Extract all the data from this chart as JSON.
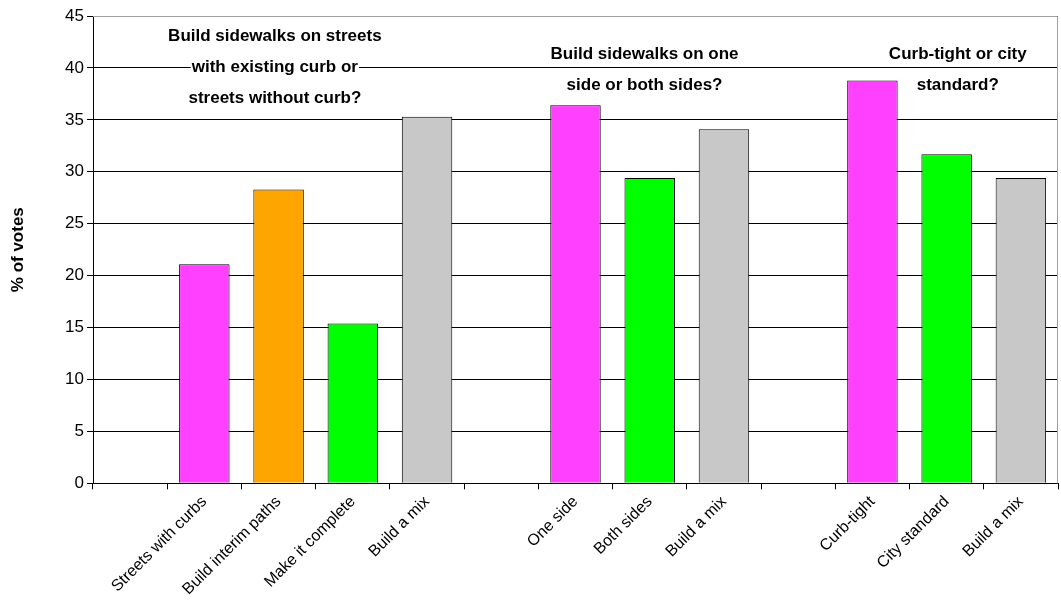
{
  "chart_data": {
    "type": "bar",
    "ylabel": "% of votes",
    "categories": [
      null,
      "Streets with curbs",
      "Build interim paths",
      "Make it complete",
      "Build a mix",
      null,
      "One side",
      "Both sides",
      "Build a mix",
      null,
      "Curb-tight",
      "City standard",
      "Build a mix"
    ],
    "values": [
      null,
      21.1,
      28.3,
      15.4,
      35.3,
      null,
      36.4,
      29.4,
      34.1,
      null,
      38.8,
      31.7,
      29.4
    ],
    "colors": [
      "#ff40ff",
      "#ff40ff",
      "#ffa500",
      "#00ff00",
      "#c8c8c8",
      "#ff40ff",
      "#ff40ff",
      "#00ff00",
      "#c8c8c8",
      "#ff40ff",
      "#ff40ff",
      "#00ff00",
      "#c8c8c8"
    ],
    "ylim": [
      0,
      45
    ],
    "yticks": [
      0,
      5,
      10,
      15,
      20,
      25,
      30,
      35,
      40,
      45
    ],
    "grid": "y",
    "legend": false,
    "annotations": [
      "Build sidewalks on streets\nwith existing curb or\nstreets without curb?",
      "Build sidewalks on one\nside or both sides?",
      "Curb-tight or city\nstandard?"
    ]
  }
}
